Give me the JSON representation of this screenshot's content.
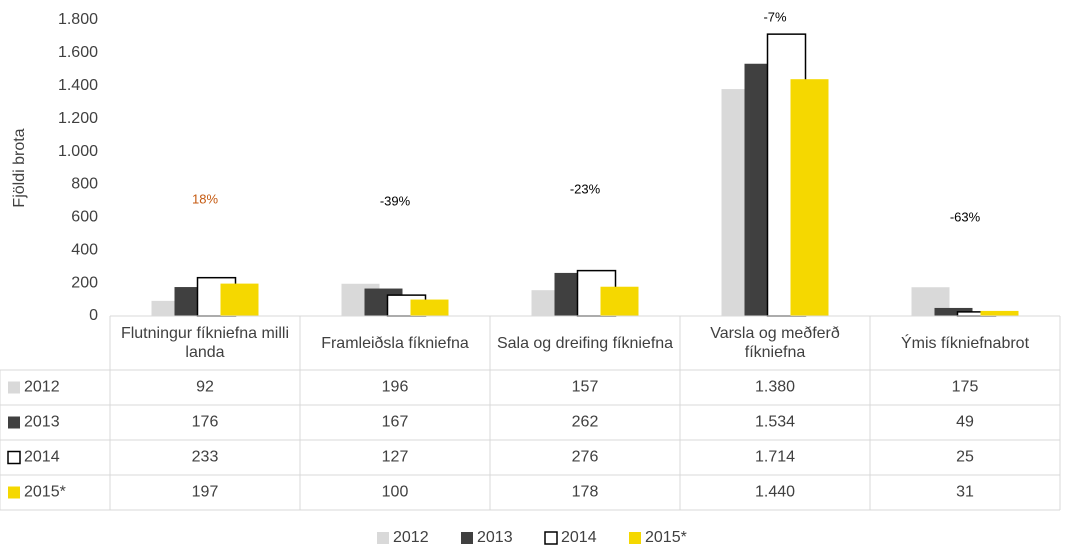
{
  "chart_data": {
    "type": "bar",
    "ylabel": "Fjöldi brota",
    "categories": [
      "Flutningur fíkniefna milli landa",
      "Framleiðsla fíkniefna",
      "Sala og dreifing fíkniefna",
      "Varsla og meðferð fíkniefna",
      "Ýmis fíkniefnabrot"
    ],
    "series": [
      {
        "name": "2012",
        "color": "#d9d9d9",
        "values": [
          92,
          196,
          157,
          1380,
          175
        ],
        "value_labels": [
          "92",
          "196",
          "157",
          "1.380",
          "175"
        ]
      },
      {
        "name": "2013",
        "color": "#404040",
        "values": [
          176,
          167,
          262,
          1534,
          49
        ],
        "value_labels": [
          "176",
          "167",
          "262",
          "1.534",
          "49"
        ]
      },
      {
        "name": "2014",
        "color": "#ffffff",
        "edgecolor": "#000000",
        "values": [
          233,
          127,
          276,
          1714,
          25
        ],
        "value_labels": [
          "233",
          "127",
          "276",
          "1.714",
          "25"
        ]
      },
      {
        "name": "2015*",
        "color": "#f5d800",
        "values": [
          197,
          100,
          178,
          1440,
          31
        ],
        "value_labels": [
          "197",
          "100",
          "178",
          "1.440",
          "31"
        ]
      }
    ],
    "annotations": [
      {
        "text": "18%",
        "color": "#c55a11"
      },
      {
        "text": "-39%",
        "color": "#000000"
      },
      {
        "text": "-23%",
        "color": "#000000"
      },
      {
        "text": "-7%",
        "color": "#000000"
      },
      {
        "text": "-63%",
        "color": "#000000"
      }
    ],
    "ylim": [
      0,
      1800
    ],
    "yticks": [
      0,
      200,
      400,
      600,
      800,
      {
        "value": 1000,
        "label": "1.000"
      },
      {
        "value": 1200,
        "label": "1.200"
      },
      {
        "value": 1400,
        "label": "1.400"
      },
      {
        "value": 1600,
        "label": "1.600"
      },
      {
        "value": 1800,
        "label": "1.800"
      }
    ],
    "grid": false,
    "legend": "bottom"
  }
}
